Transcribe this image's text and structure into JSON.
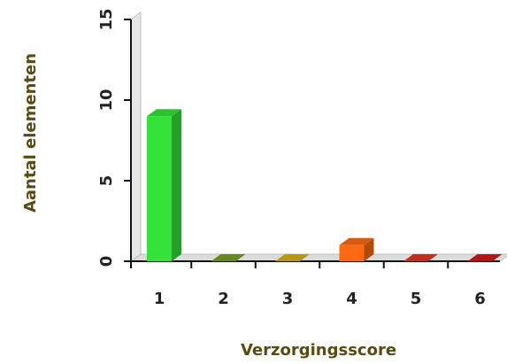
{
  "chart_data": {
    "type": "bar",
    "categories": [
      "1",
      "2",
      "3",
      "4",
      "5",
      "6"
    ],
    "values": [
      9,
      0,
      0,
      1,
      0,
      0
    ],
    "colors": [
      "#34e33a",
      "#7aa022",
      "#d6b018",
      "#ff6a10",
      "#e03b22",
      "#d21a1a"
    ],
    "xlabel": "Verzorgingsscore",
    "ylabel": "Aantal elementen",
    "ylim": [
      0,
      15
    ],
    "yticks": [
      "0",
      "5",
      "10",
      "15"
    ],
    "grid": false,
    "legend": "none"
  }
}
